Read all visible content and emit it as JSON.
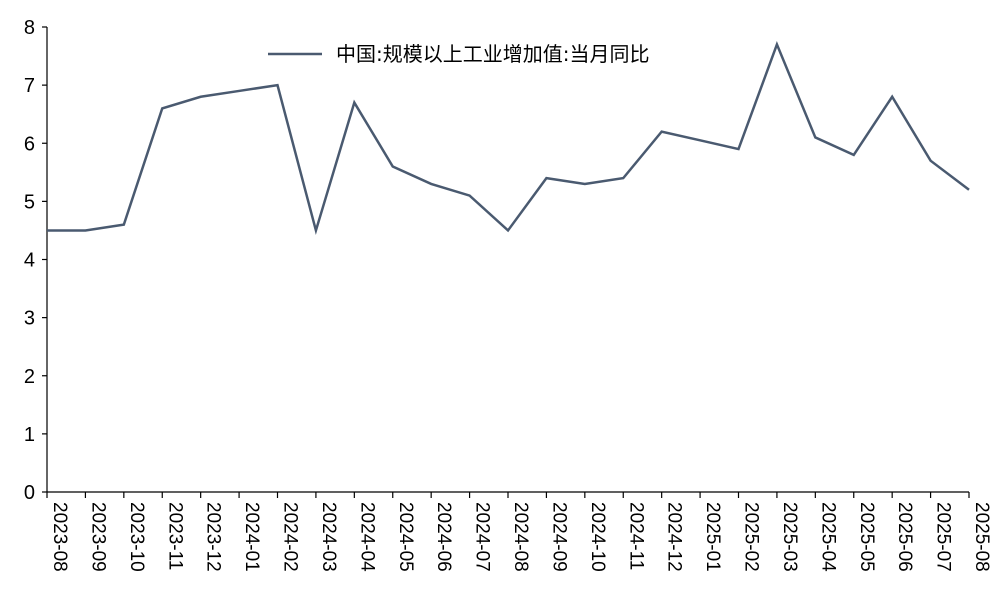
{
  "chart_data": {
    "type": "line",
    "title": "",
    "xlabel": "",
    "ylabel": "",
    "ylim": [
      0,
      8
    ],
    "yticks": [
      0,
      1,
      2,
      3,
      4,
      5,
      6,
      7,
      8
    ],
    "grid": false,
    "legend_position": "top-center",
    "categories": [
      "2023-08",
      "2023-09",
      "2023-10",
      "2023-11",
      "2023-12",
      "2024-01",
      "2024-02",
      "2024-03",
      "2024-04",
      "2024-05",
      "2024-06",
      "2024-07",
      "2024-08",
      "2024-09",
      "2024-10",
      "2024-11",
      "2024-12",
      "2025-01",
      "2025-02",
      "2025-03",
      "2025-04",
      "2025-05",
      "2025-06",
      "2025-07",
      "2025-08"
    ],
    "series": [
      {
        "name": "中国:规模以上工业增加值:当月同比",
        "color": "#4a5a70",
        "values": [
          4.5,
          4.5,
          4.6,
          6.6,
          6.8,
          6.9,
          7.0,
          4.5,
          6.7,
          5.6,
          5.3,
          5.1,
          4.5,
          5.4,
          5.3,
          5.4,
          6.2,
          6.05,
          5.9,
          7.7,
          6.1,
          5.8,
          6.8,
          5.7,
          5.2
        ]
      }
    ]
  }
}
